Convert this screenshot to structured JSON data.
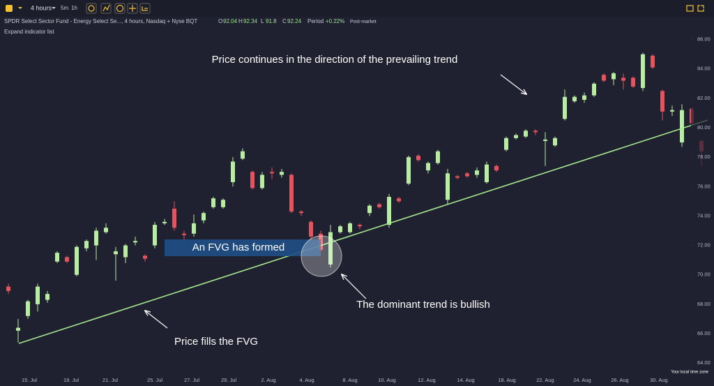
{
  "header": {
    "interval": "4 hours",
    "quick_intervals": [
      "5m",
      "1h"
    ],
    "instrument": "SPDR Select Sector Fund - Energy Select Se..., 4 hours, Nasdaq + Nyse BQT",
    "ohlc": [
      {
        "key": "O",
        "value": 92.04
      },
      {
        "key": "H",
        "value": 92.34
      },
      {
        "key": "L",
        "value": 91.8
      },
      {
        "key": "C",
        "value": 92.24
      }
    ],
    "period_label": "Period",
    "period_value": "+0.22%",
    "session": "Post-market",
    "expand": "Expand indicator list",
    "timezone": "Your local time zone"
  },
  "chart_data": {
    "type": "candlestick",
    "xtick_labels": [
      "15. Jul",
      "19. Jul",
      "21. Jul",
      "25. Jul",
      "27. Jul",
      "29. Jul",
      "2. Aug",
      "4. Aug",
      "8. Aug",
      "10. Aug",
      "12. Aug",
      "14. Aug",
      "18. Aug",
      "22. Aug",
      "24. Aug",
      "26. Aug",
      "30. Aug"
    ],
    "open": [
      69.2,
      66.2,
      67.2,
      68,
      68.3,
      70.9,
      71.2,
      70,
      71.8,
      72,
      72.9,
      71.4,
      71.2,
      72.2,
      71.3,
      72,
      73.5,
      74.5,
      72.8,
      72.8,
      73.7,
      74.6,
      74.6,
      76.3,
      77.9,
      77,
      75.9,
      77,
      76.8,
      76.8,
      74.3,
      73.6,
      72.8,
      70.7,
      72.9,
      72.9,
      73.4,
      74.2,
      74.8,
      73.4,
      75.2,
      76.2,
      78.1,
      77.1,
      77.6,
      75.1,
      76.7,
      76.9,
      76.8,
      76.3,
      77.4,
      78.5,
      79.3,
      79.4,
      79.8,
      79.1,
      78.8,
      80.6,
      81.8,
      81.9,
      82.2,
      83.6,
      83.3,
      83.4,
      83.4,
      82.7,
      84.9,
      82.5,
      81.1,
      79,
      81.3,
      79.1
    ],
    "high": [
      69.4,
      67,
      68.3,
      69.4,
      68.9,
      71.6,
      71.3,
      72,
      72.4,
      73.2,
      73.5,
      71.9,
      72.1,
      72.6,
      71.4,
      73.6,
      73.8,
      75,
      73,
      74.1,
      74.3,
      75.3,
      75.2,
      78,
      78.6,
      77.1,
      77,
      77.3,
      77.2,
      76.9,
      74.4,
      73.7,
      73,
      73.4,
      73.4,
      73.6,
      73.5,
      74.8,
      74.9,
      75.5,
      75.3,
      78.1,
      78.2,
      77.7,
      78.5,
      77.2,
      76.8,
      77,
      77.3,
      77.7,
      77.5,
      79.4,
      79.6,
      79.9,
      79.9,
      79.7,
      79.4,
      82.6,
      82.2,
      82.4,
      83.1,
      83.7,
      83.8,
      83.7,
      83.5,
      85.1,
      85,
      82.6,
      81.5,
      81.6,
      81.4,
      79.2
    ],
    "low": [
      68.7,
      65.4,
      67,
      67.5,
      68.1,
      70.8,
      70.8,
      69.9,
      71.6,
      71,
      72.8,
      69.6,
      70.8,
      72,
      70.9,
      71.8,
      73.4,
      73,
      72.2,
      72.6,
      73.5,
      74.5,
      74.5,
      76,
      77.8,
      75.8,
      75.8,
      76.5,
      76.6,
      74.2,
      74,
      72.4,
      71.6,
      70.5,
      72.8,
      72.8,
      73.1,
      74,
      74.5,
      73.2,
      74.9,
      76.1,
      77.7,
      76.9,
      77.5,
      74.8,
      76.5,
      76.6,
      76.6,
      76.2,
      77,
      78.4,
      79.2,
      79.3,
      79.5,
      77.4,
      78.7,
      80.5,
      81.7,
      81.7,
      82.1,
      83.1,
      82.9,
      82.6,
      82.7,
      82.5,
      84,
      80.5,
      80.8,
      78.7,
      80.2,
      77.4
    ],
    "close": [
      68.9,
      66.4,
      68.2,
      69.2,
      68.7,
      71.5,
      70.9,
      71.9,
      72.3,
      73,
      73.2,
      71.6,
      72,
      72.3,
      71.1,
      73.4,
      73.6,
      73.2,
      72.7,
      73.5,
      74.2,
      75.2,
      75.1,
      77.7,
      78.4,
      75.9,
      76.8,
      76.9,
      77,
      74.3,
      74.2,
      72.6,
      71.7,
      72.9,
      73.3,
      73.5,
      73.3,
      74.7,
      74.6,
      75.3,
      75,
      78,
      77.8,
      77.6,
      78.4,
      76.9,
      76.6,
      76.7,
      77.1,
      77.5,
      77.1,
      79.3,
      79.5,
      79.8,
      79.7,
      79.2,
      79.3,
      82.1,
      82.1,
      82.2,
      83,
      83.2,
      83.7,
      83.2,
      82.8,
      85,
      84.1,
      81.1,
      81.2,
      81.2,
      80.3,
      78.4
    ],
    "up_color": "#b8eca0",
    "down_color": "#e5535c",
    "ylim": [
      63.2,
      87.5
    ],
    "yticks": [
      {
        "value": 64,
        "label": "64.00"
      },
      {
        "value": 66,
        "label": "66.00"
      },
      {
        "value": 68,
        "label": "68.00"
      },
      {
        "value": 70,
        "label": "70.00"
      },
      {
        "value": 72,
        "label": "72.00"
      },
      {
        "value": 74,
        "label": "74.00"
      },
      {
        "value": 76,
        "label": "76.00"
      },
      {
        "value": 78,
        "label": "78.00"
      },
      {
        "value": 80,
        "label": "80.00"
      },
      {
        "value": 82,
        "label": "82.00"
      },
      {
        "value": 84,
        "label": "84.00"
      },
      {
        "value": 86,
        "label": "86.00"
      }
    ],
    "annotations": [
      "Price continues in the direction of the prevailing trend",
      "An FVG has formed",
      "The dominant trend is bullish",
      "Price fills the FVG"
    ]
  }
}
